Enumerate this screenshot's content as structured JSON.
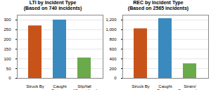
{
  "chart_data": [
    {
      "type": "bar",
      "title": "LTI by Incident Type",
      "subtitle": "(Based on 740 incidents)",
      "categories": [
        "Struck By",
        "Caught\nBetween",
        "Slip/fall\ndifferent level"
      ],
      "values": [
        270,
        300,
        105
      ],
      "colors": [
        "#c8531a",
        "#3a8abf",
        "#6aaa4a"
      ],
      "ylim": [
        0,
        325
      ],
      "yticks": [
        0,
        50,
        100,
        150,
        200,
        250,
        300
      ],
      "grid": true
    },
    {
      "type": "bar",
      "title": "REC by Incident Type",
      "subtitle": "(Based on 2565 incidents)",
      "categories": [
        "Struck By",
        "Caught\nBetween",
        "Strain/\nOverexertion"
      ],
      "values": [
        1020,
        1230,
        300
      ],
      "colors": [
        "#c8531a",
        "#3a8abf",
        "#6aaa4a"
      ],
      "ylim": [
        0,
        1300
      ],
      "yticks": [
        0,
        200,
        400,
        600,
        800,
        1000,
        1200
      ],
      "grid": true
    }
  ]
}
